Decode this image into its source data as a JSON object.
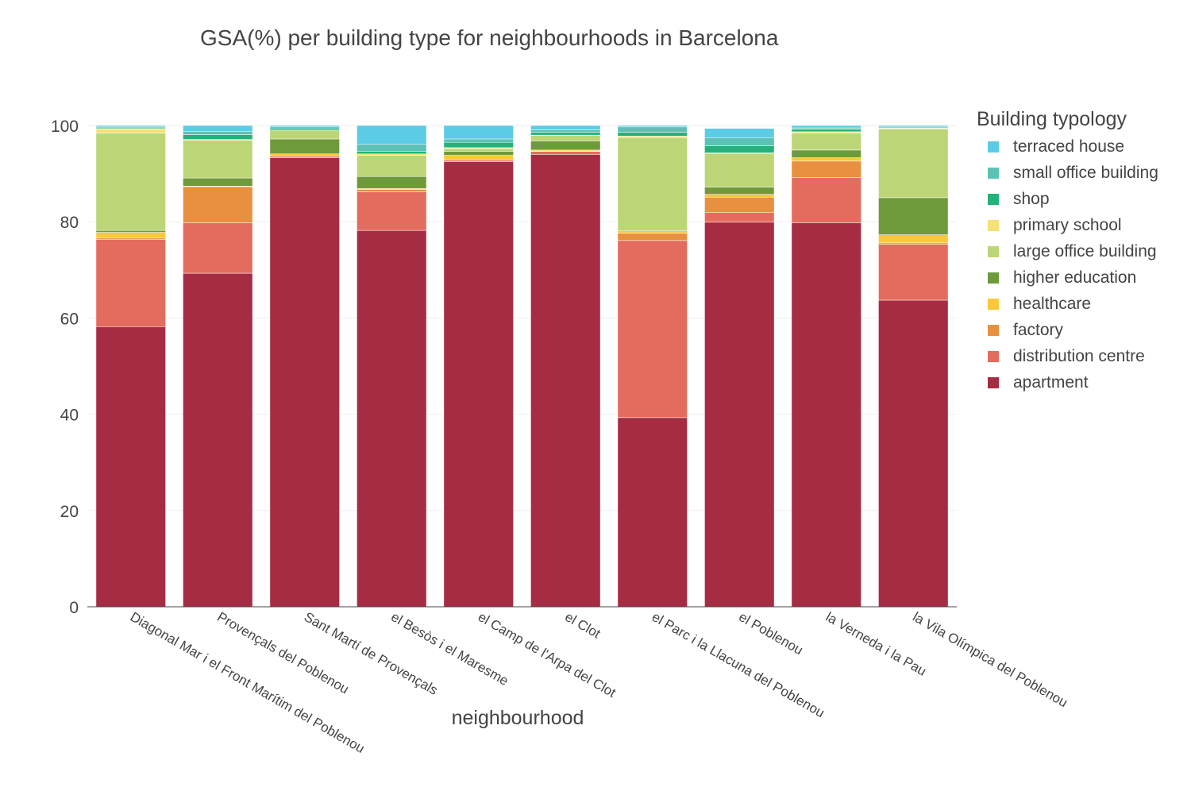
{
  "chart_data": {
    "type": "bar",
    "stacked": true,
    "title": "GSA(%) per building type for neighbourhoods in Barcelona",
    "xlabel": "neighbourhood",
    "ylabel": "",
    "ylim": [
      0,
      100
    ],
    "yticks": [
      0,
      20,
      40,
      60,
      80,
      100
    ],
    "grid": true,
    "legend_title": "Building typology",
    "legend_position": "right",
    "categories": [
      "Diagonal Mar i el Front Marítim del Poblenou",
      "Provençals del Poblenou",
      "Sant Martí de Provençals",
      "el Besòs i el Maresme",
      "el Camp de l'Arpa del Clot",
      "el Clot",
      "el Parc i la Llacuna del Poblenou",
      "el Poblenou",
      "la Verneda i la Pau",
      "la Vila Olímpica del Poblenou"
    ],
    "series": [
      {
        "name": "apartment",
        "color": "#a52c42",
        "values": [
          58.2,
          69.3,
          93.3,
          78.2,
          92.5,
          94.0,
          39.3,
          79.9,
          79.8,
          63.7
        ]
      },
      {
        "name": "distribution centre",
        "color": "#e46c5e",
        "values": [
          18.1,
          10.5,
          0.3,
          8.0,
          0.3,
          0.6,
          36.8,
          2.0,
          9.4,
          11.6
        ]
      },
      {
        "name": "factory",
        "color": "#e8903f",
        "values": [
          0.3,
          7.5,
          0.0,
          0.5,
          0.0,
          0.1,
          1.5,
          3.2,
          3.4,
          0.3
        ]
      },
      {
        "name": "healthcare",
        "color": "#fcc73a",
        "values": [
          1.2,
          0.1,
          0.5,
          0.2,
          1.0,
          0.2,
          0.5,
          0.6,
          0.7,
          1.7
        ]
      },
      {
        "name": "higher education",
        "color": "#6f9a3c",
        "values": [
          0.4,
          1.7,
          3.1,
          2.5,
          0.8,
          1.9,
          0.0,
          1.5,
          1.6,
          7.7
        ]
      },
      {
        "name": "large office building",
        "color": "#bcd677",
        "values": [
          20.2,
          7.8,
          1.8,
          4.4,
          0.6,
          1.1,
          19.4,
          7.0,
          3.5,
          14.3
        ]
      },
      {
        "name": "primary school",
        "color": "#f6e07a",
        "values": [
          0.9,
          0.2,
          0.0,
          0.3,
          0.2,
          0.1,
          0.3,
          0.1,
          0.3,
          0.1
        ]
      },
      {
        "name": "shop",
        "color": "#22b27b",
        "values": [
          0.2,
          1.0,
          0.3,
          0.5,
          1.1,
          0.6,
          0.8,
          1.5,
          0.5,
          0.1
        ]
      },
      {
        "name": "small office building",
        "color": "#5cc2b5",
        "values": [
          0.2,
          0.7,
          0.4,
          1.5,
          0.7,
          0.5,
          1.1,
          1.6,
          0.3,
          0.2
        ]
      },
      {
        "name": "terraced house",
        "color": "#5ccbe6",
        "values": [
          0.3,
          1.2,
          0.3,
          3.9,
          2.8,
          0.9,
          0.3,
          2.0,
          0.5,
          0.3
        ]
      }
    ]
  }
}
